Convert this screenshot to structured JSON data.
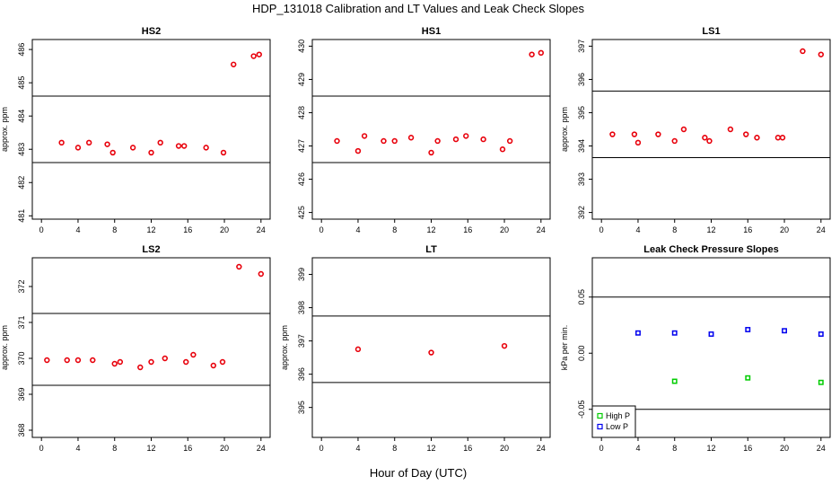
{
  "figure": {
    "title": "HDP_131018  Calibration and LT Values and Leak Check Slopes",
    "xlabel": "Hour of Day (UTC)"
  },
  "chart_data": [
    {
      "type": "scatter",
      "title": "HS2",
      "ylabel": "approx. ppm",
      "xlim": [
        -1,
        25
      ],
      "ylim": [
        480.9,
        486.3
      ],
      "xticks": [
        0,
        4,
        8,
        12,
        16,
        20,
        24
      ],
      "yticks": [
        481,
        482,
        483,
        484,
        485,
        486
      ],
      "hlines": [
        484.6,
        482.6
      ],
      "color": "#e8000b",
      "x": [
        2.2,
        4.0,
        5.2,
        7.2,
        7.8,
        10.0,
        12.0,
        13.0,
        15.0,
        15.6,
        18.0,
        19.9,
        21.0,
        23.2,
        23.8
      ],
      "y": [
        483.2,
        483.05,
        483.2,
        483.15,
        482.9,
        483.05,
        482.9,
        483.2,
        483.1,
        483.1,
        483.05,
        482.9,
        485.55,
        485.8,
        485.85
      ]
    },
    {
      "type": "scatter",
      "title": "HS1",
      "ylabel": "",
      "xlim": [
        -1,
        25
      ],
      "ylim": [
        424.8,
        430.2
      ],
      "xticks": [
        0,
        4,
        8,
        12,
        16,
        20,
        24
      ],
      "yticks": [
        425,
        426,
        427,
        428,
        429,
        430
      ],
      "hlines": [
        428.5,
        426.5
      ],
      "color": "#e8000b",
      "x": [
        1.7,
        4.0,
        4.7,
        6.8,
        8.0,
        9.8,
        12.0,
        12.7,
        14.7,
        15.8,
        17.7,
        19.8,
        20.6,
        23.0,
        24.0
      ],
      "y": [
        427.15,
        426.85,
        427.3,
        427.15,
        427.15,
        427.25,
        426.8,
        427.15,
        427.2,
        427.3,
        427.2,
        426.9,
        427.15,
        429.75,
        429.8
      ]
    },
    {
      "type": "scatter",
      "title": "LS1",
      "ylabel": "approx. ppm",
      "xlim": [
        -1,
        25
      ],
      "ylim": [
        391.8,
        397.2
      ],
      "xticks": [
        0,
        4,
        8,
        12,
        16,
        20,
        24
      ],
      "yticks": [
        392,
        393,
        394,
        395,
        396,
        397
      ],
      "hlines": [
        395.65,
        393.65
      ],
      "color": "#e8000b",
      "x": [
        1.2,
        3.6,
        4.0,
        6.2,
        8.0,
        9.0,
        11.3,
        11.8,
        14.1,
        15.8,
        17.0,
        19.3,
        19.8,
        22.0,
        24.0
      ],
      "y": [
        394.35,
        394.35,
        394.1,
        394.35,
        394.15,
        394.5,
        394.25,
        394.15,
        394.5,
        394.35,
        394.25,
        394.25,
        394.25,
        396.85,
        396.75
      ]
    },
    {
      "type": "scatter",
      "title": "LS2",
      "ylabel": "approx. ppm",
      "xlim": [
        -1,
        25
      ],
      "ylim": [
        367.8,
        372.8
      ],
      "xticks": [
        0,
        4,
        8,
        12,
        16,
        20,
        24
      ],
      "yticks": [
        368,
        369,
        370,
        371,
        372
      ],
      "hlines": [
        371.25,
        369.25
      ],
      "color": "#e8000b",
      "x": [
        0.6,
        2.8,
        4.0,
        5.6,
        8.0,
        8.6,
        10.8,
        12.0,
        13.5,
        15.8,
        16.6,
        18.8,
        19.8,
        21.6,
        24.0
      ],
      "y": [
        369.95,
        369.95,
        369.95,
        369.95,
        369.85,
        369.9,
        369.75,
        369.9,
        370.0,
        369.9,
        370.1,
        369.8,
        369.9,
        372.55,
        372.35
      ]
    },
    {
      "type": "scatter",
      "title": "LT",
      "ylabel": "approx. ppm",
      "xlim": [
        -1,
        25
      ],
      "ylim": [
        394.1,
        399.5
      ],
      "xticks": [
        0,
        4,
        8,
        12,
        16,
        20,
        24
      ],
      "yticks": [
        395,
        396,
        397,
        398,
        399
      ],
      "hlines": [
        397.75,
        395.75
      ],
      "color": "#e8000b",
      "x": [
        4.0,
        12.0,
        20.0
      ],
      "y": [
        396.75,
        396.65,
        396.85
      ]
    },
    {
      "type": "scatter",
      "title": "Leak Check Pressure Slopes",
      "ylabel": "kPa per min.",
      "xlim": [
        -1,
        25
      ],
      "ylim": [
        -0.075,
        0.085
      ],
      "xticks": [
        0,
        4,
        8,
        12,
        16,
        20,
        24
      ],
      "yticks": [
        -0.05,
        0.0,
        0.05
      ],
      "ytick_labels": [
        "-0.05",
        "0.00",
        "0.05"
      ],
      "hlines": [
        0.05,
        -0.05
      ],
      "legend": {
        "position": "bottom-left"
      },
      "series": [
        {
          "name": "High P",
          "color": "#00cc00",
          "x": [
            8,
            16,
            24
          ],
          "y": [
            -0.025,
            -0.022,
            -0.026
          ]
        },
        {
          "name": "Low P",
          "color": "#0000ee",
          "x": [
            4,
            8,
            12,
            16,
            20,
            24
          ],
          "y": [
            0.018,
            0.018,
            0.017,
            0.021,
            0.02,
            0.017
          ]
        }
      ]
    }
  ]
}
